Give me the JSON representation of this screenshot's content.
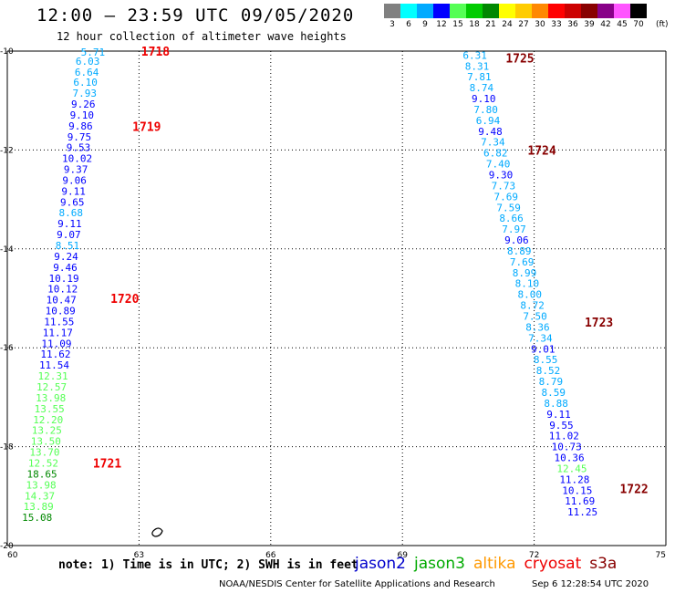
{
  "header": {
    "title": "12:00 – 23:59 UTC 09/05/2020",
    "subtitle": "12 hour collection of altimeter wave heights"
  },
  "color_scale": {
    "labels": [
      "3",
      "6",
      "9",
      "12",
      "15",
      "18",
      "21",
      "24",
      "27",
      "30",
      "33",
      "36",
      "39",
      "42",
      "45",
      "70"
    ],
    "unit": "(ft)",
    "colors": [
      "#808080",
      "#00ffff",
      "#00aaff",
      "#0000ff",
      "#55ff55",
      "#00cc00",
      "#008800",
      "#ffff00",
      "#ffcc00",
      "#ff8800",
      "#ff0000",
      "#cc0000",
      "#880000",
      "#880088",
      "#ff55ff",
      "#000000"
    ]
  },
  "map": {
    "lat_labels": [
      "-10",
      "-12",
      "-14",
      "-16",
      "-18",
      "-20"
    ],
    "lon_labels": [
      "60",
      "63",
      "66",
      "69",
      "72",
      "75"
    ]
  },
  "chart_data": {
    "type": "scatter",
    "xlim": [
      60,
      75
    ],
    "ylim": [
      -20,
      -10
    ],
    "grid": true,
    "track_west": {
      "values": [
        "5.71",
        "6.03",
        "6.64",
        "6.10",
        "7.93",
        "9.26",
        "9.10",
        "9.86",
        "9.75",
        "9.53",
        "10.02",
        "9.37",
        "9.06",
        "9.11",
        "9.65",
        "8.68",
        "9.11",
        "9.07",
        "8.51",
        "9.24",
        "9.46",
        "10.19",
        "10.12",
        "10.47",
        "10.89",
        "11.55",
        "11.17",
        "11.09",
        "11.62",
        "11.54",
        "12.31",
        "12.57",
        "13.98",
        "13.55",
        "12.20",
        "13.25",
        "13.50",
        "13.70",
        "12.52",
        "18.65",
        "13.98",
        "14.37",
        "13.89",
        "15.08"
      ],
      "colors": [
        "#00aaff",
        "#00aaff",
        "#00aaff",
        "#00aaff",
        "#00aaff",
        "#0000ff",
        "#0000ff",
        "#0000ff",
        "#0000ff",
        "#0000ff",
        "#0000ff",
        "#0000ff",
        "#0000ff",
        "#0000ff",
        "#0000ff",
        "#00aaff",
        "#0000ff",
        "#0000ff",
        "#00aaff",
        "#0000ff",
        "#0000ff",
        "#0000ff",
        "#0000ff",
        "#0000ff",
        "#0000ff",
        "#0000ff",
        "#0000ff",
        "#0000ff",
        "#0000ff",
        "#0000ff",
        "#55ff55",
        "#55ff55",
        "#55ff55",
        "#55ff55",
        "#55ff55",
        "#55ff55",
        "#55ff55",
        "#55ff55",
        "#55ff55",
        "#008800",
        "#55ff55",
        "#55ff55",
        "#55ff55",
        "#008800"
      ],
      "lon": [
        61.95,
        61.83,
        61.81,
        61.78,
        61.76,
        61.73,
        61.7,
        61.67,
        61.64,
        61.62,
        61.59,
        61.56,
        61.53,
        61.51,
        61.48,
        61.45,
        61.42,
        61.4,
        61.37,
        61.34,
        61.32,
        61.29,
        61.26,
        61.23,
        61.21,
        61.18,
        61.15,
        61.12,
        61.1,
        61.07,
        61.04,
        61.01,
        60.99,
        60.96,
        60.93,
        60.9,
        60.88,
        60.85,
        60.82,
        60.79,
        60.77,
        60.74,
        60.71,
        60.68
      ],
      "lat": [
        -10.02,
        -10.2,
        -10.42,
        -10.63,
        -10.85,
        -11.07,
        -11.29,
        -11.51,
        -11.73,
        -11.95,
        -12.17,
        -12.39,
        -12.61,
        -12.83,
        -13.05,
        -13.27,
        -13.49,
        -13.71,
        -13.93,
        -14.15,
        -14.37,
        -14.59,
        -14.81,
        -15.03,
        -15.25,
        -15.47,
        -15.69,
        -15.91,
        -16.13,
        -16.35,
        -16.57,
        -16.79,
        -17.01,
        -17.23,
        -17.45,
        -17.67,
        -17.89,
        -18.11,
        -18.33,
        -18.55,
        -18.77,
        -18.99,
        -19.21,
        -19.43
      ]
    },
    "track_east": {
      "values": [
        "6.31",
        "8.31",
        "7.81",
        "8.74",
        "9.10",
        "7.80",
        "6.94",
        "9.48",
        "7.34",
        "6.82",
        "7.40",
        "9.30",
        "7.73",
        "7.69",
        "7.59",
        "8.66",
        "7.97",
        "9.06",
        "8.89",
        "7.69",
        "8.99",
        "8.10",
        "8.00",
        "8.72",
        "7.50",
        "8.36",
        "7.34",
        "9.01",
        "8.55",
        "8.52",
        "8.79",
        "8.59",
        "8.88",
        "9.11",
        "9.55",
        "11.02",
        "10.73",
        "10.36",
        "12.45",
        "11.28",
        "10.15",
        "11.69",
        "11.25"
      ],
      "colors": [
        "#00aaff",
        "#00aaff",
        "#00aaff",
        "#00aaff",
        "#0000ff",
        "#00aaff",
        "#00aaff",
        "#0000ff",
        "#00aaff",
        "#00aaff",
        "#00aaff",
        "#0000ff",
        "#00aaff",
        "#00aaff",
        "#00aaff",
        "#00aaff",
        "#00aaff",
        "#0000ff",
        "#00aaff",
        "#00aaff",
        "#00aaff",
        "#00aaff",
        "#00aaff",
        "#00aaff",
        "#00aaff",
        "#00aaff",
        "#00aaff",
        "#0000ff",
        "#00aaff",
        "#00aaff",
        "#00aaff",
        "#00aaff",
        "#00aaff",
        "#0000ff",
        "#0000ff",
        "#0000ff",
        "#0000ff",
        "#0000ff",
        "#55ff55",
        "#0000ff",
        "#0000ff",
        "#0000ff",
        "#0000ff"
      ],
      "lon": [
        70.65,
        70.7,
        70.75,
        70.8,
        70.85,
        70.9,
        70.95,
        71.0,
        71.06,
        71.12,
        71.18,
        71.24,
        71.3,
        71.36,
        71.42,
        71.48,
        71.54,
        71.6,
        71.66,
        71.72,
        71.78,
        71.84,
        71.9,
        71.96,
        72.02,
        72.08,
        72.14,
        72.2,
        72.26,
        72.32,
        72.38,
        72.44,
        72.5,
        72.56,
        72.62,
        72.68,
        72.74,
        72.8,
        72.86,
        72.92,
        72.98,
        73.04,
        73.1
      ],
      "lat": [
        -10.08,
        -10.3,
        -10.52,
        -10.74,
        -10.96,
        -11.18,
        -11.4,
        -11.62,
        -11.84,
        -12.06,
        -12.28,
        -12.5,
        -12.72,
        -12.94,
        -13.16,
        -13.38,
        -13.6,
        -13.82,
        -14.04,
        -14.26,
        -14.48,
        -14.7,
        -14.92,
        -15.14,
        -15.36,
        -15.58,
        -15.8,
        -16.02,
        -16.24,
        -16.46,
        -16.68,
        -16.9,
        -17.12,
        -17.34,
        -17.56,
        -17.78,
        -18.0,
        -18.22,
        -18.44,
        -18.66,
        -18.88,
        -19.1,
        -19.32
      ]
    },
    "time_labels": [
      {
        "text": "1718",
        "lon": 63.05,
        "lat": -10.0,
        "color": "#ee0000"
      },
      {
        "text": "1719",
        "lon": 62.85,
        "lat": -11.52,
        "color": "#ee0000"
      },
      {
        "text": "1720",
        "lon": 62.35,
        "lat": -15.0,
        "color": "#ee0000"
      },
      {
        "text": "1721",
        "lon": 61.95,
        "lat": -18.33,
        "color": "#ee0000"
      },
      {
        "text": "1722",
        "lon": 73.95,
        "lat": -18.85,
        "color": "#880000"
      },
      {
        "text": "1723",
        "lon": 73.15,
        "lat": -15.48,
        "color": "#880000"
      },
      {
        "text": "1724",
        "lon": 71.85,
        "lat": -12.0,
        "color": "#880000"
      },
      {
        "text": "1725",
        "lon": 71.35,
        "lat": -10.14,
        "color": "#880000"
      }
    ]
  },
  "footer": {
    "note": "note: 1) Time is in UTC; 2) SWH is in feet",
    "satellites": [
      {
        "name": "jason2",
        "color": "#0000cc"
      },
      {
        "name": "jason3",
        "color": "#00aa00"
      },
      {
        "name": "altika",
        "color": "#ff9900"
      },
      {
        "name": "cryosat",
        "color": "#ee0000"
      },
      {
        "name": "s3a",
        "color": "#880000"
      }
    ],
    "credit": "NOAA/NESDIS Center for Satellite Applications and Research",
    "timestamp": "Sep  6 12:28:54 UTC 2020"
  }
}
